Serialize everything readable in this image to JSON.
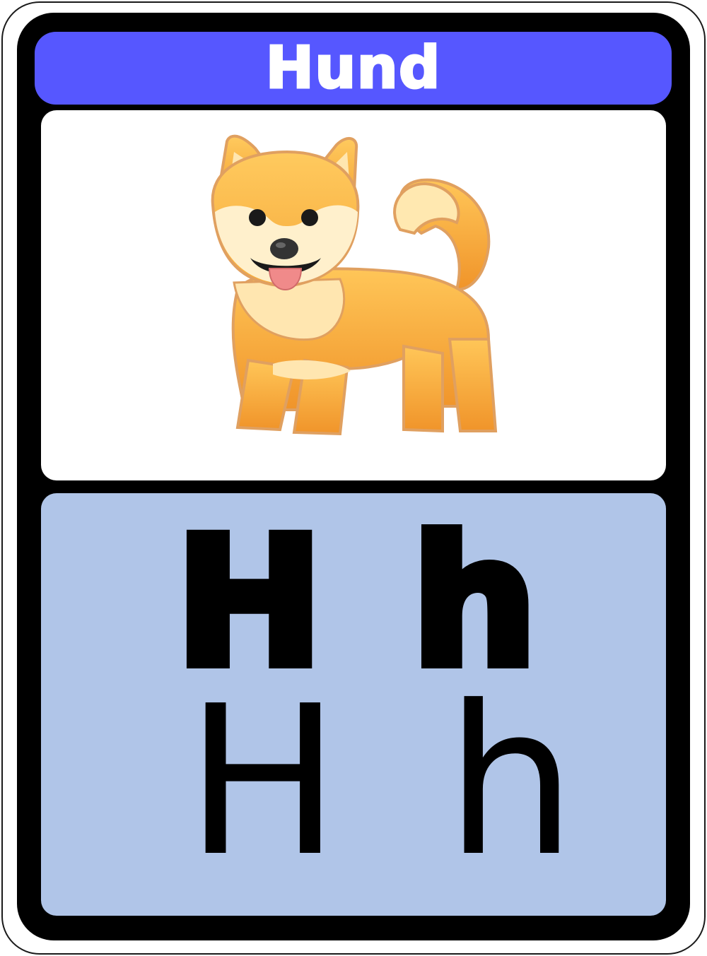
{
  "card": {
    "title": "Hund",
    "picture_icon": "dog-icon",
    "letters": {
      "bold_upper": "H",
      "bold_lower": "h",
      "regular_upper": "H",
      "regular_lower": "h"
    },
    "colors": {
      "title_bar": "#5657ff",
      "letter_panel": "#b0c5e8",
      "frame": "#000000"
    }
  }
}
